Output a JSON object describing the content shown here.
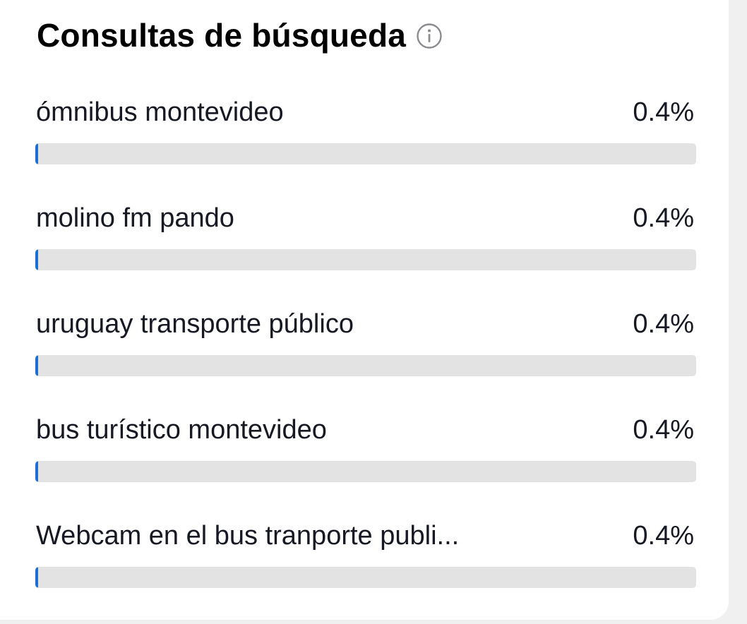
{
  "panel": {
    "title": "Consultas de búsqueda",
    "info_icon": "info-circle-icon"
  },
  "queries": [
    {
      "label": "ómnibus montevideo",
      "percent_text": "0.4%",
      "percent": 0.4
    },
    {
      "label": "molino fm pando",
      "percent_text": "0.4%",
      "percent": 0.4
    },
    {
      "label": "uruguay transporte público",
      "percent_text": "0.4%",
      "percent": 0.4
    },
    {
      "label": "bus turístico montevideo",
      "percent_text": "0.4%",
      "percent": 0.4
    },
    {
      "label": "Webcam en el bus tranporte publi...",
      "percent_text": "0.4%",
      "percent": 0.4
    }
  ],
  "colors": {
    "bar_fill": "#1b6fd1",
    "bar_track": "#e3e3e3",
    "text": "#161823"
  }
}
